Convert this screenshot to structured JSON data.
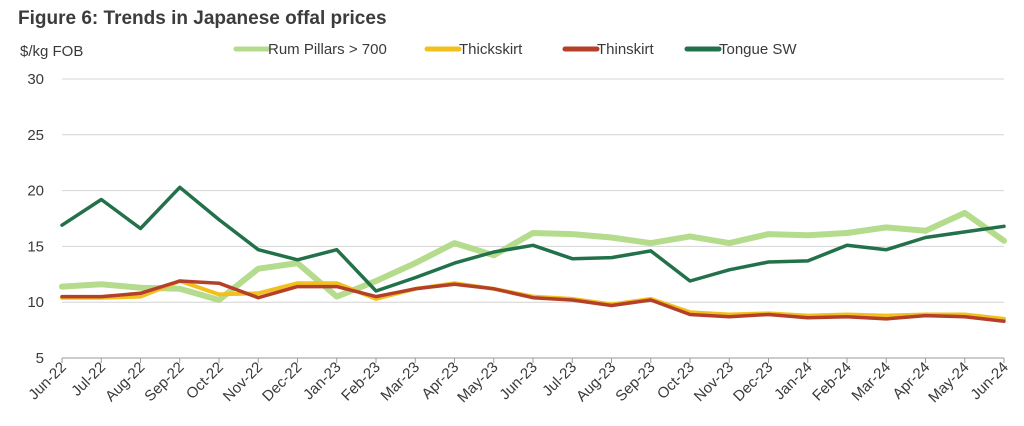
{
  "title": "Figure 6: Trends in Japanese offal prices",
  "chart_data": {
    "type": "line",
    "ylabel": "$/kg FOB",
    "ylim": [
      5,
      30
    ],
    "yticks": [
      5,
      10,
      15,
      20,
      25,
      30
    ],
    "grid": "horizontal",
    "legend_position": "top",
    "categories": [
      "Jun-22",
      "Jul-22",
      "Aug-22",
      "Sep-22",
      "Oct-22",
      "Nov-22",
      "Dec-22",
      "Jan-23",
      "Feb-23",
      "Mar-23",
      "Apr-23",
      "May-23",
      "Jun-23",
      "Jul-23",
      "Aug-23",
      "Sep-23",
      "Oct-23",
      "Nov-23",
      "Dec-23",
      "Jan-24",
      "Feb-24",
      "Mar-24",
      "Apr-24",
      "May-24",
      "Jun-24"
    ],
    "series": [
      {
        "name": "Rum Pillars > 700",
        "color": "#b4dc8c",
        "width": 6,
        "values": [
          11.4,
          11.6,
          11.3,
          11.2,
          10.2,
          13.0,
          13.5,
          10.5,
          11.9,
          13.5,
          15.3,
          14.2,
          16.2,
          16.1,
          15.8,
          15.3,
          15.9,
          15.3,
          16.1,
          16.0,
          16.2,
          16.7,
          16.4,
          18.0,
          15.5
        ]
      },
      {
        "name": "Thickskirt",
        "color": "#f2c01e",
        "width": 4,
        "values": [
          10.4,
          10.4,
          10.5,
          11.9,
          10.7,
          10.8,
          11.7,
          11.7,
          10.3,
          11.2,
          11.7,
          11.2,
          10.5,
          10.3,
          9.8,
          10.3,
          9.1,
          8.9,
          9.0,
          8.8,
          8.9,
          8.8,
          8.9,
          8.9,
          8.5
        ]
      },
      {
        "name": "Thinskirt",
        "color": "#b5402a",
        "width": 3.5,
        "values": [
          10.5,
          10.5,
          10.8,
          11.9,
          11.7,
          10.4,
          11.4,
          11.4,
          10.5,
          11.2,
          11.6,
          11.2,
          10.4,
          10.2,
          9.7,
          10.2,
          8.9,
          8.7,
          8.9,
          8.6,
          8.7,
          8.5,
          8.8,
          8.7,
          8.3
        ]
      },
      {
        "name": "Tongue SW",
        "color": "#23714a",
        "width": 3.5,
        "values": [
          16.9,
          19.2,
          16.6,
          20.3,
          17.4,
          14.7,
          13.8,
          14.7,
          11.0,
          12.2,
          13.5,
          14.5,
          15.1,
          13.9,
          14.0,
          14.6,
          11.9,
          12.9,
          13.6,
          13.7,
          15.1,
          14.7,
          15.8,
          16.3,
          16.8
        ]
      }
    ]
  }
}
